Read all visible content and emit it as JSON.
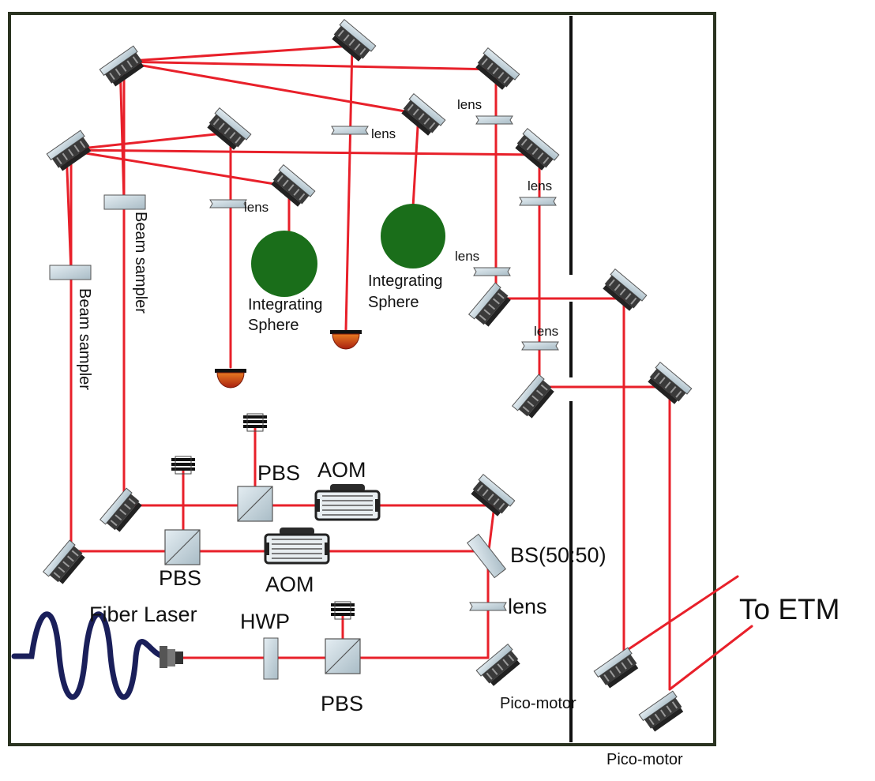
{
  "labels": {
    "fiber_laser": "Fiber Laser",
    "hwp": "HWP",
    "pbs_input": "PBS",
    "pbs_lower": "PBS",
    "pbs_upper": "PBS",
    "aom_lower": "AOM",
    "aom_upper": "AOM",
    "bs": "BS(50:50)",
    "lens_bs": "lens",
    "lens_left": "lens",
    "lens_center": "lens",
    "lens_top_right": "lens",
    "lens_right_1": "lens",
    "lens_right_2": "lens",
    "lens_right_3": "lens",
    "beam_sampler_1": "Beam sampler",
    "beam_sampler_2": "Beam sampler",
    "sphere_1_line1": "Integrating",
    "sphere_1_line2": "Sphere",
    "sphere_2_line1": "Integrating",
    "sphere_2_line2": "Sphere",
    "pico_motor_1": "Pico-motor",
    "pico_motor_2": "Pico-motor",
    "to_etm": "To ETM"
  },
  "colors": {
    "beam": "#e8202a",
    "frame": "#2a3320",
    "sphere": "#1a6e1a",
    "optic_fill": "#c8d6de",
    "mount": "#3a3a3a",
    "fiber": "#1a1f5a",
    "detector": "#d9661a"
  }
}
